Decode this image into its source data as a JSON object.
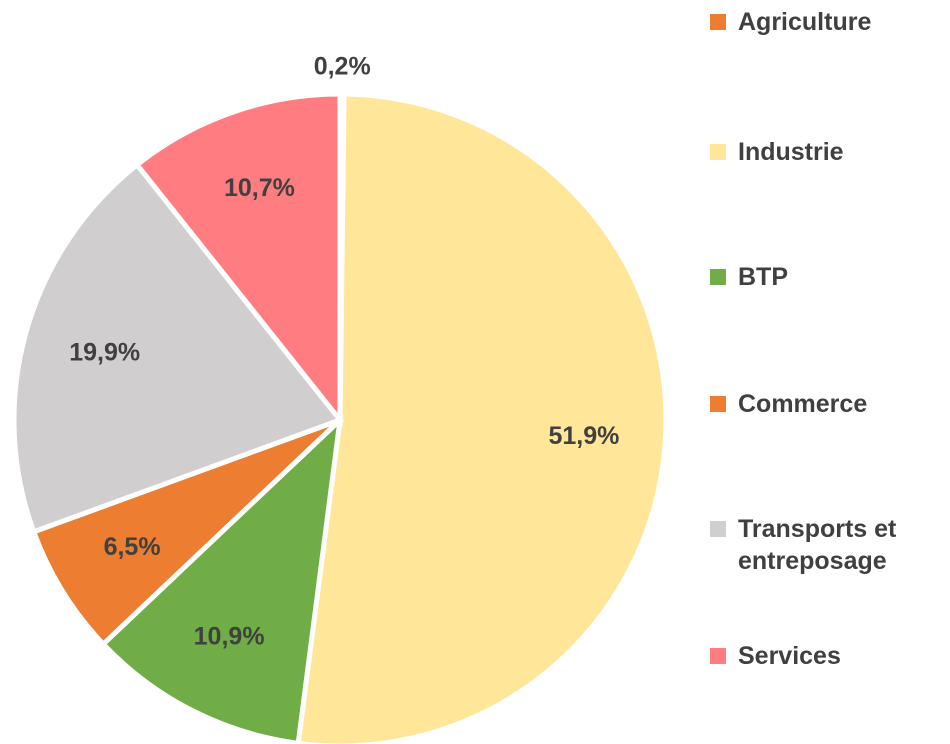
{
  "chart_data": {
    "type": "pie",
    "categories": [
      "Agriculture",
      "Industrie",
      "BTP",
      "Commerce",
      "Transports et entreposage",
      "Services"
    ],
    "values": [
      0.2,
      51.9,
      10.9,
      6.5,
      19.9,
      10.7
    ],
    "value_labels": [
      "0,2%",
      "51,9%",
      "10,9%",
      "6,5%",
      "19,9%",
      "10,7%"
    ],
    "colors": [
      "#ED7D31",
      "#FFE699",
      "#70AD47",
      "#ED7D31",
      "#D0CECE",
      "#FF7C80"
    ],
    "legend": "right"
  }
}
